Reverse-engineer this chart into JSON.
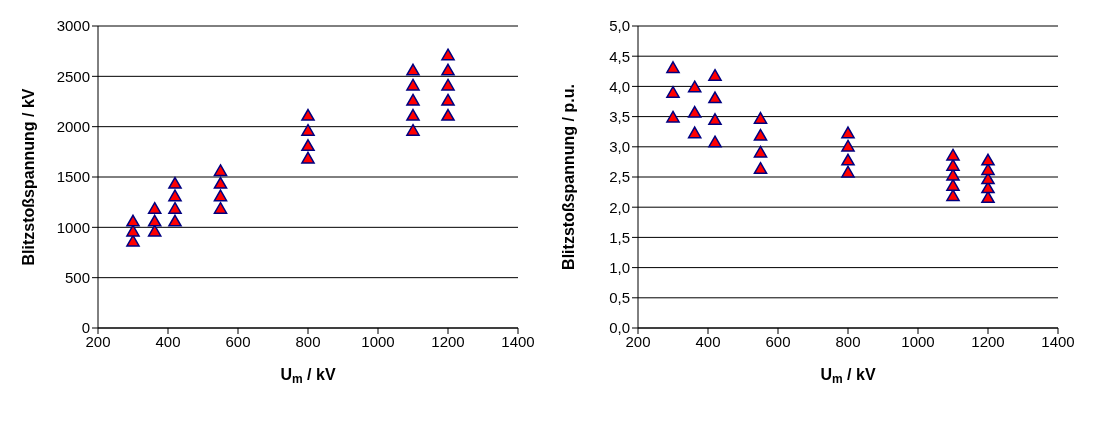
{
  "chart_data": [
    {
      "type": "scatter",
      "xlabel": "U$_{m}$ / kV",
      "ylabel": "Blitzstoßspannung / kV",
      "xlim": [
        200,
        1400
      ],
      "xticks": [
        200,
        400,
        600,
        800,
        1000,
        1200,
        1400
      ],
      "ylim": [
        0,
        3000
      ],
      "yticks": [
        0,
        500,
        1000,
        1500,
        2000,
        2500,
        3000
      ],
      "grid": "y",
      "marker": "triangle",
      "series": [
        {
          "color": "#ff0000",
          "x": [
            300,
            300,
            300,
            362,
            362,
            362,
            420,
            420,
            420,
            420,
            550,
            550,
            550,
            550,
            800,
            800,
            800,
            800,
            1100,
            1100,
            1100,
            1100,
            1100,
            1200,
            1200,
            1200,
            1200,
            1200
          ],
          "values": [
            850,
            950,
            1050,
            950,
            1050,
            1175,
            1050,
            1175,
            1300,
            1425,
            1175,
            1300,
            1425,
            1550,
            1675,
            1800,
            1950,
            2100,
            1950,
            2100,
            2250,
            2400,
            2550,
            2100,
            2250,
            2400,
            2550,
            2700
          ]
        }
      ]
    },
    {
      "type": "scatter",
      "xlabel": "U$_{m}$ / kV",
      "ylabel": "Blitzstoßspannung / p.u.",
      "xlim": [
        200,
        1400
      ],
      "xticks": [
        200,
        400,
        600,
        800,
        1000,
        1200,
        1400
      ],
      "ylim": [
        0,
        5
      ],
      "yticks": [
        {
          "value": 0,
          "label": "0,0"
        },
        {
          "value": 0.5,
          "label": "0,5"
        },
        {
          "value": 1,
          "label": "1,0"
        },
        {
          "value": 1.5,
          "label": "1,5"
        },
        {
          "value": 2,
          "label": "2,0"
        },
        {
          "value": 2.5,
          "label": "2,5"
        },
        {
          "value": 3,
          "label": "3,0"
        },
        {
          "value": 3.5,
          "label": "3,5"
        },
        {
          "value": 4,
          "label": "4,0"
        },
        {
          "value": 4.5,
          "label": "4,5"
        },
        {
          "value": 5,
          "label": "5,0"
        }
      ],
      "grid": "y",
      "marker": "triangle",
      "series": [
        {
          "color": "#ff0000",
          "x": [
            300,
            300,
            300,
            362,
            362,
            362,
            420,
            420,
            420,
            420,
            550,
            550,
            550,
            550,
            800,
            800,
            800,
            800,
            1100,
            1100,
            1100,
            1100,
            1100,
            1200,
            1200,
            1200,
            1200,
            1200
          ],
          "values": [
            3.47,
            3.88,
            4.29,
            3.21,
            3.55,
            3.97,
            3.06,
            3.43,
            3.79,
            4.16,
            2.62,
            2.89,
            3.17,
            3.45,
            2.56,
            2.76,
            2.99,
            3.21,
            2.17,
            2.34,
            2.51,
            2.67,
            2.84,
            2.14,
            2.3,
            2.45,
            2.6,
            2.76
          ]
        }
      ]
    }
  ]
}
